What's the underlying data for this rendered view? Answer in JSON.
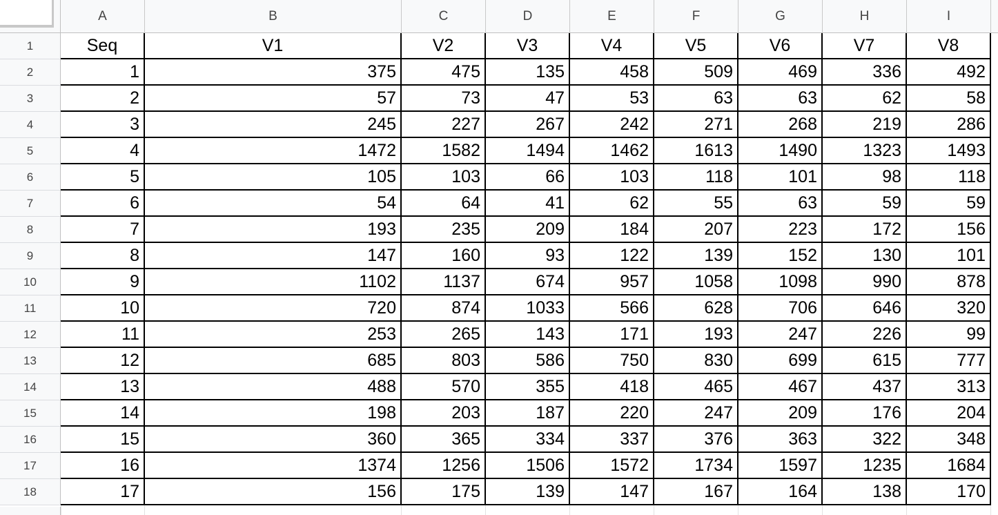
{
  "column_headers": [
    "A",
    "B",
    "C",
    "D",
    "E",
    "F",
    "G",
    "H",
    "I"
  ],
  "row_headers": [
    "1",
    "2",
    "3",
    "4",
    "5",
    "6",
    "7",
    "8",
    "9",
    "10",
    "11",
    "12",
    "13",
    "14",
    "15",
    "16",
    "17",
    "18"
  ],
  "table": {
    "header": [
      "Seq",
      "V1",
      "V2",
      "V3",
      "V4",
      "V5",
      "V6",
      "V7",
      "V8"
    ],
    "rows": [
      [
        "1",
        "375",
        "475",
        "135",
        "458",
        "509",
        "469",
        "336",
        "492"
      ],
      [
        "2",
        "57",
        "73",
        "47",
        "53",
        "63",
        "63",
        "62",
        "58"
      ],
      [
        "3",
        "245",
        "227",
        "267",
        "242",
        "271",
        "268",
        "219",
        "286"
      ],
      [
        "4",
        "1472",
        "1582",
        "1494",
        "1462",
        "1613",
        "1490",
        "1323",
        "1493"
      ],
      [
        "5",
        "105",
        "103",
        "66",
        "103",
        "118",
        "101",
        "98",
        "118"
      ],
      [
        "6",
        "54",
        "64",
        "41",
        "62",
        "55",
        "63",
        "59",
        "59"
      ],
      [
        "7",
        "193",
        "235",
        "209",
        "184",
        "207",
        "223",
        "172",
        "156"
      ],
      [
        "8",
        "147",
        "160",
        "93",
        "122",
        "139",
        "152",
        "130",
        "101"
      ],
      [
        "9",
        "1102",
        "1137",
        "674",
        "957",
        "1058",
        "1098",
        "990",
        "878"
      ],
      [
        "10",
        "720",
        "874",
        "1033",
        "566",
        "628",
        "706",
        "646",
        "320"
      ],
      [
        "11",
        "253",
        "265",
        "143",
        "171",
        "193",
        "247",
        "226",
        "99"
      ],
      [
        "12",
        "685",
        "803",
        "586",
        "750",
        "830",
        "699",
        "615",
        "777"
      ],
      [
        "13",
        "488",
        "570",
        "355",
        "418",
        "465",
        "467",
        "437",
        "313"
      ],
      [
        "14",
        "198",
        "203",
        "187",
        "220",
        "247",
        "209",
        "176",
        "204"
      ],
      [
        "15",
        "360",
        "365",
        "334",
        "337",
        "376",
        "363",
        "322",
        "348"
      ],
      [
        "16",
        "1374",
        "1256",
        "1506",
        "1572",
        "1734",
        "1597",
        "1235",
        "1684"
      ],
      [
        "17",
        "156",
        "175",
        "139",
        "147",
        "167",
        "164",
        "138",
        "170"
      ]
    ]
  }
}
